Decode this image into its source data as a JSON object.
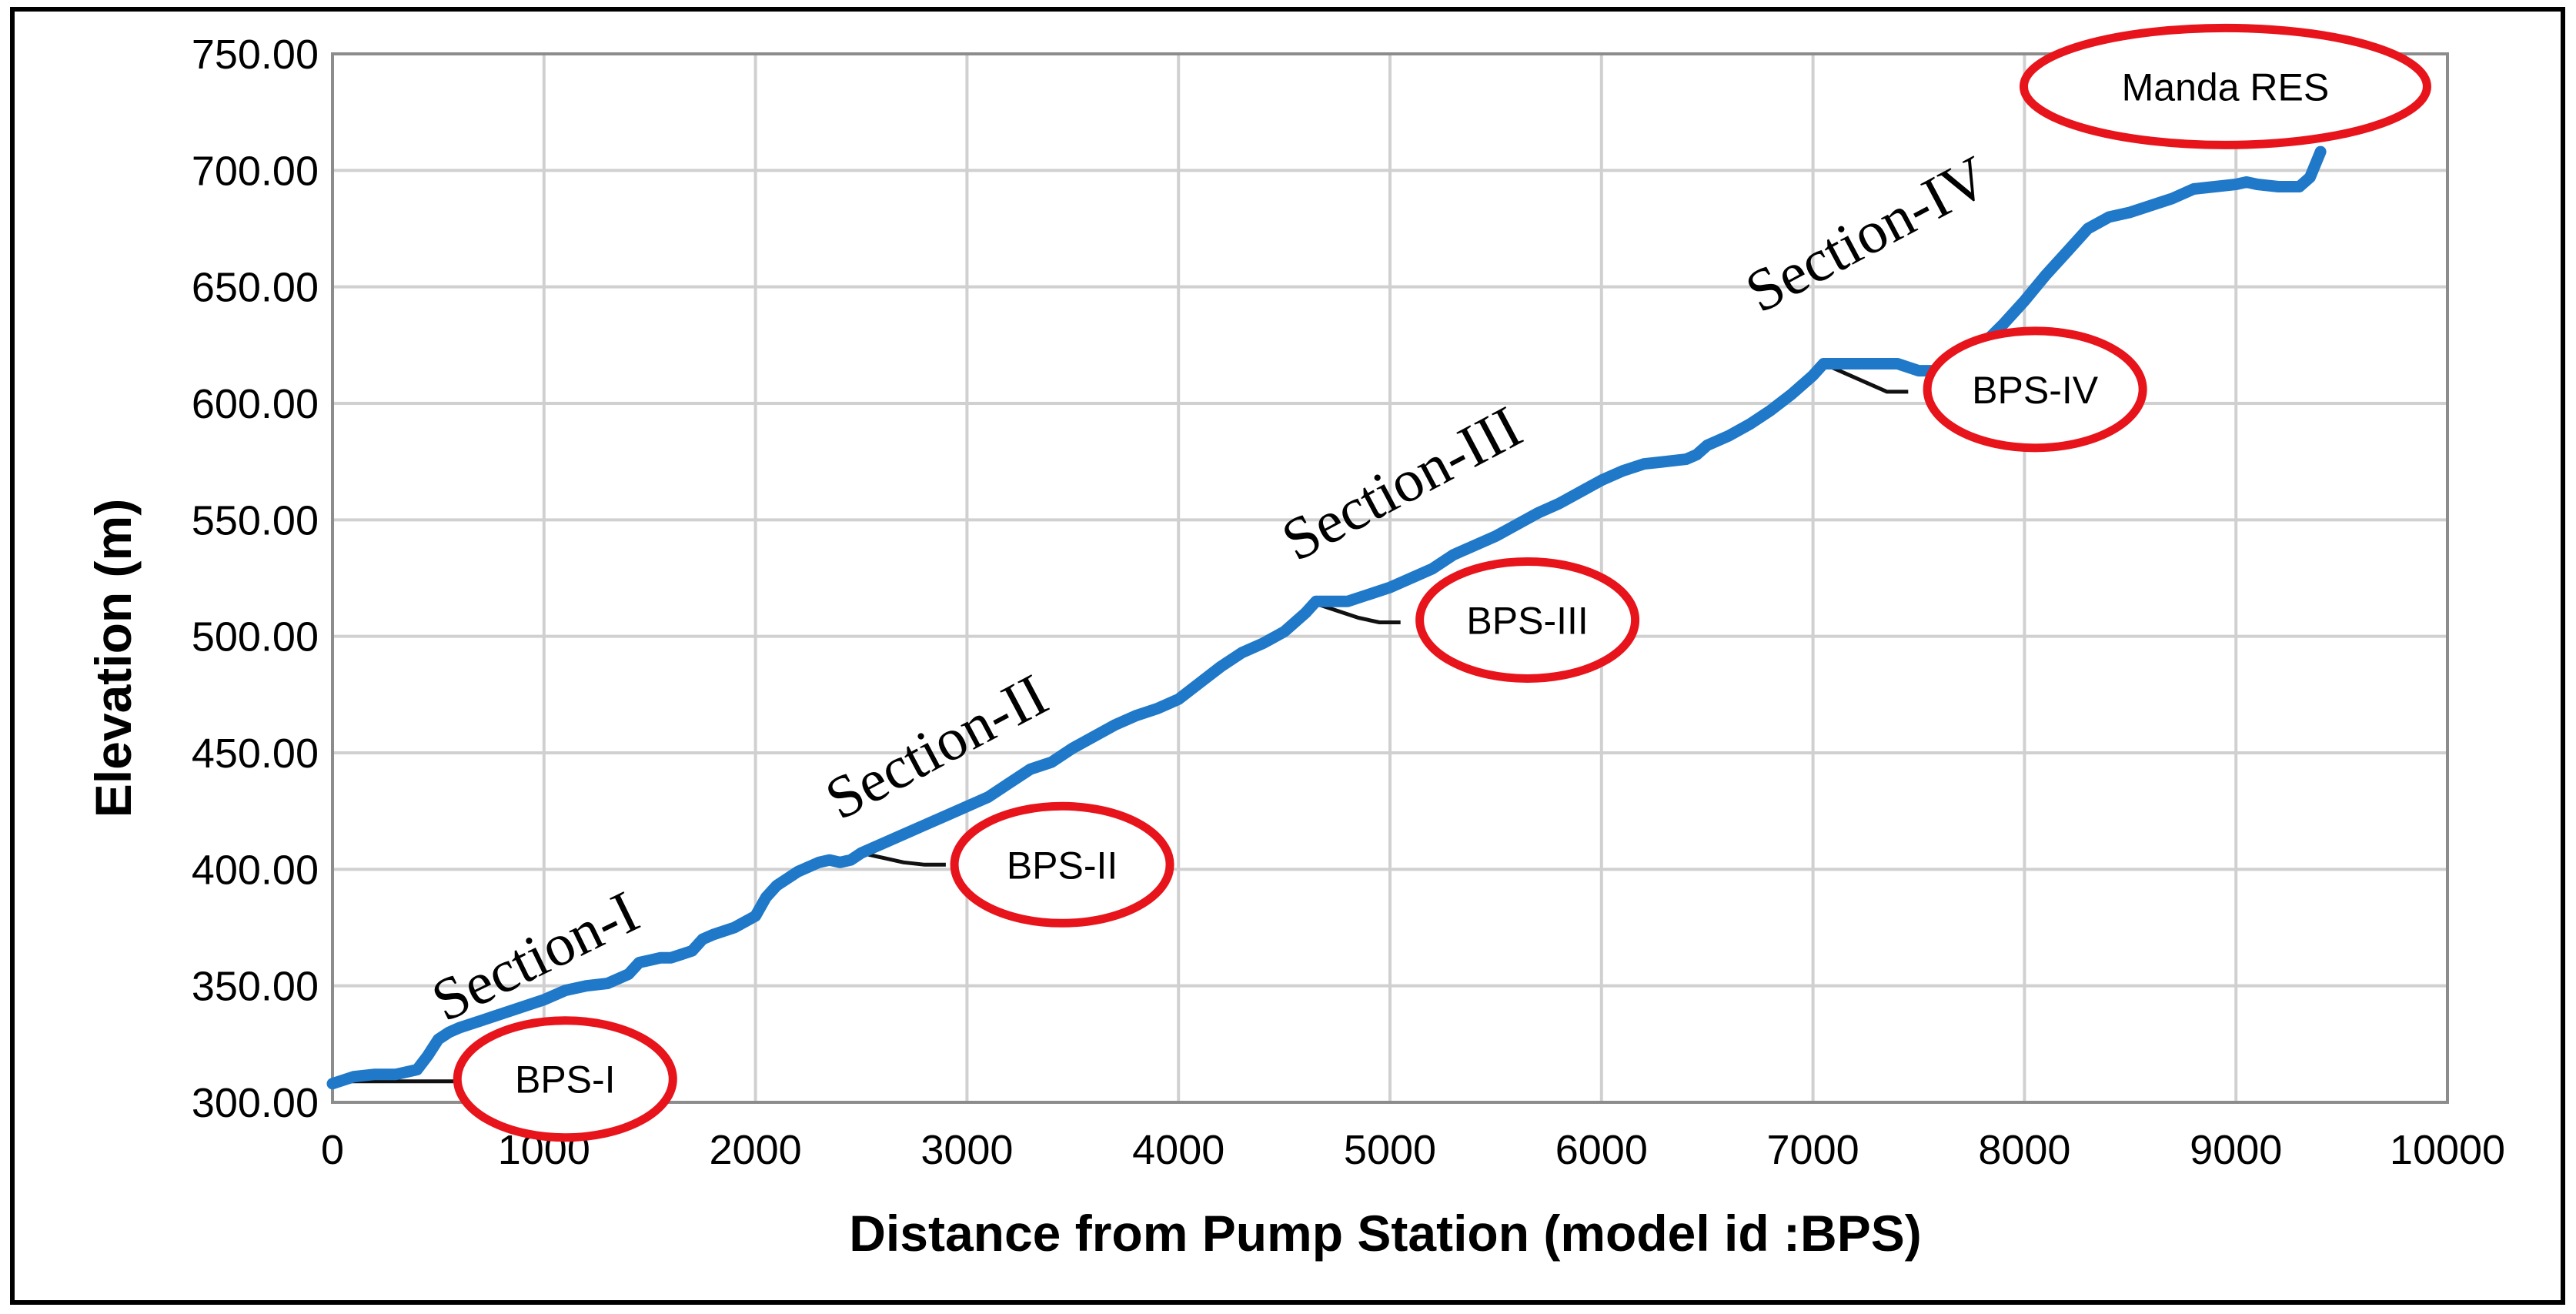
{
  "chart_data": {
    "type": "line",
    "title": "",
    "xlabel": "Distance from Pump Station  (model  id :BPS)",
    "ylabel": "Elevation  (m)",
    "xlim": [
      0,
      10000
    ],
    "ylim": [
      300,
      750
    ],
    "x_ticks": [
      "0",
      "1000",
      "2000",
      "3000",
      "4000",
      "5000",
      "6000",
      "7000",
      "8000",
      "9000",
      "10000"
    ],
    "y_ticks": [
      "300.00",
      "350.00",
      "400.00",
      "450.00",
      "500.00",
      "550.00",
      "600.00",
      "650.00",
      "700.00",
      "750.00"
    ],
    "grid": true,
    "legend": "none",
    "series": [
      {
        "color": "#1f78c8",
        "x": [
          0,
          100,
          200,
          300,
          400,
          450,
          500,
          550,
          600,
          700,
          800,
          900,
          1000,
          1100,
          1200,
          1300,
          1400,
          1450,
          1500,
          1550,
          1600,
          1700,
          1750,
          1800,
          1900,
          2000,
          2050,
          2100,
          2200,
          2300,
          2350,
          2400,
          2450,
          2500,
          2600,
          2700,
          2800,
          2900,
          3000,
          3100,
          3200,
          3300,
          3400,
          3500,
          3600,
          3700,
          3800,
          3900,
          4000,
          4100,
          4200,
          4300,
          4400,
          4500,
          4600,
          4650,
          4700,
          4800,
          4900,
          5000,
          5100,
          5200,
          5300,
          5400,
          5500,
          5600,
          5700,
          5800,
          5900,
          6000,
          6100,
          6200,
          6300,
          6400,
          6450,
          6500,
          6600,
          6700,
          6800,
          6900,
          7000,
          7050,
          7100,
          7200,
          7300,
          7400,
          7500,
          7600,
          7700,
          7800,
          7900,
          8000,
          8100,
          8200,
          8300,
          8400,
          8500,
          8600,
          8700,
          8800,
          8900,
          9000,
          9050,
          9100,
          9200,
          9300,
          9350,
          9400
        ],
        "y": [
          308,
          311,
          312,
          312,
          314,
          320,
          327,
          330,
          332,
          335,
          338,
          341,
          344,
          348,
          350,
          351,
          355,
          360,
          361,
          362,
          362,
          365,
          370,
          372,
          375,
          380,
          388,
          393,
          399,
          403,
          404,
          403,
          404,
          407,
          411,
          415,
          419,
          423,
          427,
          431,
          437,
          443,
          446,
          452,
          457,
          462,
          466,
          469,
          473,
          480,
          487,
          493,
          497,
          502,
          510,
          515,
          515,
          515,
          518,
          521,
          525,
          529,
          535,
          539,
          543,
          548,
          553,
          557,
          562,
          567,
          571,
          574,
          575,
          576,
          578,
          582,
          586,
          591,
          597,
          604,
          612,
          617,
          617,
          617,
          617,
          617,
          614,
          614,
          618,
          625,
          634,
          644,
          655,
          665,
          675,
          680,
          682,
          685,
          688,
          692,
          693,
          694,
          695,
          694,
          693,
          693,
          697,
          708
        ]
      },
      {
        "color": "#111111",
        "x": [
          0,
          100,
          200,
          300,
          400,
          500,
          600
        ],
        "y": [
          309,
          309,
          309,
          309,
          309,
          309,
          309
        ]
      },
      {
        "color": "#111111",
        "x": [
          2500,
          2600,
          2700,
          2800,
          2900
        ],
        "y": [
          407,
          405,
          403,
          402,
          402
        ]
      },
      {
        "color": "#111111",
        "x": [
          4650,
          4750,
          4850,
          4950,
          5050
        ],
        "y": [
          514,
          511,
          508,
          506,
          506
        ]
      },
      {
        "color": "#111111",
        "x": [
          7050,
          7150,
          7250,
          7350,
          7450
        ],
        "y": [
          617,
          613,
          609,
          605,
          605
        ]
      }
    ],
    "annotations": [
      {
        "text": "Section-I",
        "x": 1000,
        "y": 355,
        "rotate": -26
      },
      {
        "text": "Section-II",
        "x": 2900,
        "y": 445,
        "rotate": -28
      },
      {
        "text": "Section-III",
        "x": 5100,
        "y": 558,
        "rotate": -28
      },
      {
        "text": "Section-IV",
        "x": 7300,
        "y": 665,
        "rotate": -28
      },
      {
        "text": "BPS-I",
        "x": 1100,
        "y": 310,
        "ellipse": true
      },
      {
        "text": "BPS-II",
        "x": 3450,
        "y": 402,
        "ellipse": true
      },
      {
        "text": "BPS-III",
        "x": 5650,
        "y": 507,
        "ellipse": true
      },
      {
        "text": "BPS-IV",
        "x": 8050,
        "y": 606,
        "ellipse": true
      },
      {
        "text": "Manda RES",
        "x": 8950,
        "y": 736,
        "ellipse": true
      }
    ]
  }
}
